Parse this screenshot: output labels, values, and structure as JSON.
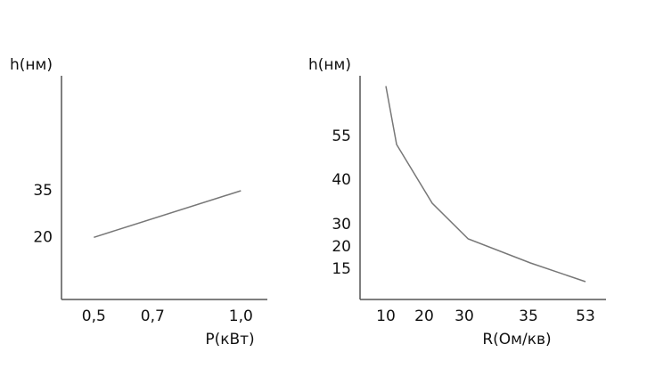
{
  "chart_data": [
    {
      "type": "line",
      "y_label": "h(нм)",
      "x_label": "P(кВт)",
      "x": [
        0.5,
        1.0
      ],
      "values": [
        20,
        35
      ],
      "color": "#777777",
      "xlim": [
        0.39,
        1.09
      ],
      "ylim": [
        0,
        72
      ],
      "xticks": [
        {
          "value": 0.5,
          "label": "0,5"
        },
        {
          "value": 0.7,
          "label": "0,7"
        },
        {
          "value": 1.0,
          "label": "1,0"
        }
      ],
      "yticks": [
        20,
        35
      ]
    },
    {
      "type": "line",
      "y_label": "h(нм)",
      "x_label": "R(Ом/кв)",
      "x": [
        10,
        12.8,
        22,
        30.3,
        35.6,
        53
      ],
      "values": [
        72.4,
        52.2,
        34.8,
        23.6,
        16.4,
        12.2
      ],
      "color": "#777777",
      "xlim": [
        3.3,
        59.5
      ],
      "ylim": [
        8.2,
        76
      ],
      "xticks": [
        10,
        20,
        30,
        35,
        53
      ],
      "yticks": [
        15,
        20,
        30,
        40,
        55
      ]
    }
  ]
}
